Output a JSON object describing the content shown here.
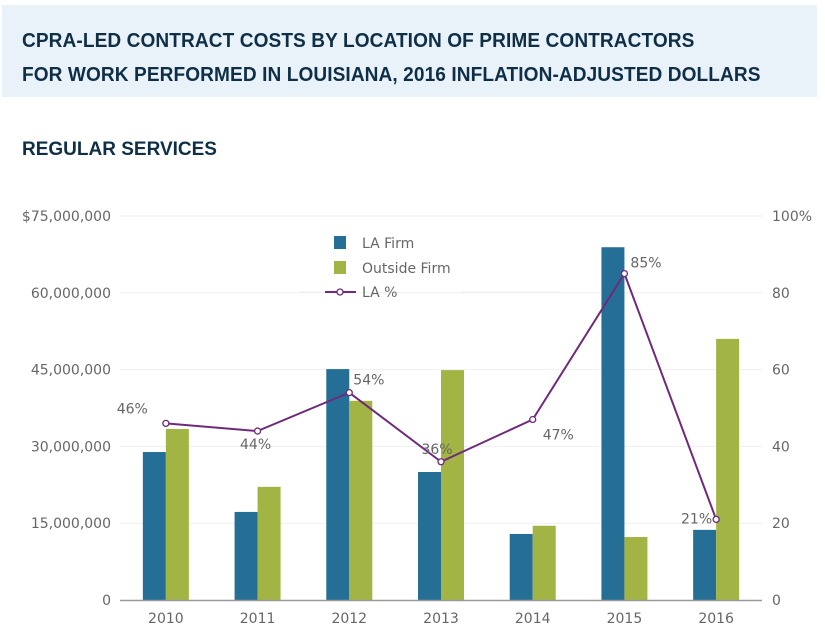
{
  "header": {
    "title_line1": "CPRA-LED CONTRACT COSTS BY LOCATION OF PRIME CONTRACTORS",
    "title_line2": "FOR WORK PERFORMED IN LOUISIANA, 2016 INFLATION-ADJUSTED DOLLARS"
  },
  "subtitle": "REGULAR SERVICES",
  "chart_data": {
    "type": "bar",
    "title": "CPRA-LED CONTRACT COSTS BY LOCATION OF PRIME CONTRACTORS FOR WORK PERFORMED IN LOUISIANA, 2016 INFLATION-ADJUSTED DOLLARS",
    "subtitle": "REGULAR SERVICES",
    "categories": [
      "2010",
      "2011",
      "2012",
      "2013",
      "2014",
      "2015",
      "2016"
    ],
    "series": [
      {
        "name": "LA Firm",
        "type": "bar",
        "axis": "left",
        "color": "#256f96",
        "values": [
          28900000,
          17200000,
          45100000,
          25000000,
          12900000,
          68900000,
          13700000
        ]
      },
      {
        "name": "Outside Firm",
        "type": "bar",
        "axis": "left",
        "color": "#a2b443",
        "values": [
          33400000,
          22100000,
          38900000,
          44900000,
          14500000,
          12300000,
          51000000
        ]
      },
      {
        "name": "LA %",
        "type": "line",
        "axis": "right",
        "color": "#6e2a7b",
        "values": [
          46,
          44,
          54,
          36,
          47,
          85,
          21
        ],
        "data_labels": [
          "46%",
          "44%",
          "54%",
          "36%",
          "47%",
          "85%",
          "21%"
        ]
      }
    ],
    "y_left": {
      "min": 0,
      "max": 75000000,
      "ticks": [
        0,
        15000000,
        30000000,
        45000000,
        60000000,
        75000000
      ],
      "tick_labels": [
        "0",
        "15,000,000",
        "30,000,000",
        "45,000,000",
        "60,000,000",
        "$75,000,000"
      ]
    },
    "y_right": {
      "min": 0,
      "max": 100,
      "ticks": [
        0,
        20,
        40,
        60,
        80,
        100
      ],
      "tick_labels": [
        "0",
        "20",
        "40",
        "60",
        "80",
        "100%"
      ]
    },
    "xlabel": "",
    "ylabel": "",
    "grid": true,
    "legend": {
      "position": "top-center",
      "entries": [
        "LA Firm",
        "Outside Firm",
        "LA %"
      ]
    },
    "gridline_color": "#efefef",
    "axis_color": "#999999"
  }
}
